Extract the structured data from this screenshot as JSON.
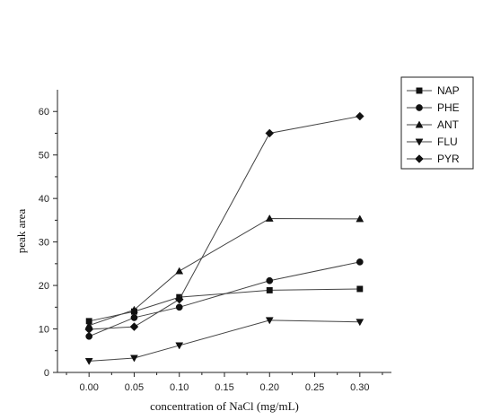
{
  "chart_data": {
    "type": "line",
    "xlabel": "concentration of NaCl (mg/mL)",
    "ylabel": "peak area",
    "xlim": [
      -0.035,
      0.335
    ],
    "ylim": [
      0,
      65
    ],
    "x_ticks": [
      "0.00",
      "0.05",
      "0.10",
      "0.15",
      "0.20",
      "0.25",
      "0.30"
    ],
    "x_tick_values": [
      0.0,
      0.05,
      0.1,
      0.15,
      0.2,
      0.25,
      0.3
    ],
    "y_ticks": [
      "0",
      "10",
      "20",
      "30",
      "40",
      "50",
      "60"
    ],
    "y_tick_values": [
      0,
      10,
      20,
      30,
      40,
      50,
      60
    ],
    "grid": false,
    "legend_position": "top-right",
    "x": [
      0.0,
      0.05,
      0.1,
      0.2,
      0.3
    ],
    "series": [
      {
        "name": "NAP",
        "marker": "square",
        "values": [
          11.8,
          14.0,
          17.3,
          18.9,
          19.2
        ]
      },
      {
        "name": "PHE",
        "marker": "circle",
        "values": [
          8.3,
          12.6,
          15.0,
          21.1,
          25.4
        ]
      },
      {
        "name": "ANT",
        "marker": "triangle-up",
        "values": [
          10.8,
          14.4,
          23.3,
          35.4,
          35.3
        ]
      },
      {
        "name": "FLU",
        "marker": "triangle-down",
        "values": [
          2.6,
          3.3,
          6.2,
          12.0,
          11.6
        ]
      },
      {
        "name": "PYR",
        "marker": "diamond",
        "values": [
          9.9,
          10.5,
          16.8,
          55.0,
          58.9
        ]
      }
    ]
  }
}
